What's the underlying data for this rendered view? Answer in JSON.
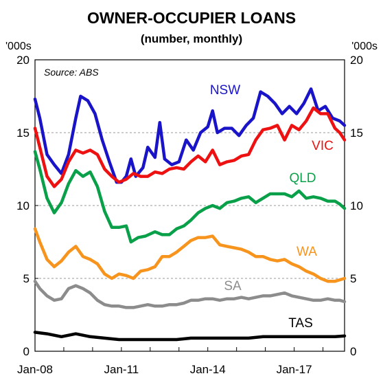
{
  "chart_data": {
    "type": "line",
    "title": "OWNER-OCCUPIER LOANS",
    "subtitle": "(number, monthly)",
    "y_unit_left": "'000s",
    "y_unit_right": "'000s",
    "annotation": "Source: ABS",
    "ylim": [
      0,
      20
    ],
    "yticks": [
      "0",
      "5",
      "10",
      "15",
      "20"
    ],
    "x_domain": [
      "2008-01",
      "2018-10"
    ],
    "xticks": [
      {
        "date": "2008-01",
        "label": "Jan-08"
      },
      {
        "date": "2011-01",
        "label": "Jan-11"
      },
      {
        "date": "2014-01",
        "label": "Jan-14"
      },
      {
        "date": "2017-01",
        "label": "Jan-17"
      }
    ],
    "grid": "horizontal dashed",
    "series": [
      {
        "name": "NSW",
        "color": "#1a14c8",
        "points": [
          [
            "2008-01",
            17.3
          ],
          [
            "2008-03",
            16.0
          ],
          [
            "2008-06",
            13.5
          ],
          [
            "2008-09",
            12.8
          ],
          [
            "2008-12",
            12.2
          ],
          [
            "2009-03",
            13.5
          ],
          [
            "2009-06",
            16.0
          ],
          [
            "2009-08",
            17.5
          ],
          [
            "2009-11",
            17.2
          ],
          [
            "2010-02",
            16.3
          ],
          [
            "2010-05",
            14.5
          ],
          [
            "2010-08",
            13.0
          ],
          [
            "2010-11",
            11.6
          ],
          [
            "2011-01",
            11.6
          ],
          [
            "2011-03",
            12.0
          ],
          [
            "2011-05",
            13.2
          ],
          [
            "2011-07",
            12.0
          ],
          [
            "2011-10",
            12.6
          ],
          [
            "2011-12",
            14.0
          ],
          [
            "2012-03",
            13.3
          ],
          [
            "2012-05",
            15.7
          ],
          [
            "2012-07",
            13.2
          ],
          [
            "2012-10",
            12.8
          ],
          [
            "2013-01",
            13.0
          ],
          [
            "2013-04",
            14.5
          ],
          [
            "2013-07",
            13.8
          ],
          [
            "2013-10",
            15.0
          ],
          [
            "2014-01",
            15.4
          ],
          [
            "2014-03",
            16.5
          ],
          [
            "2014-05",
            15.0
          ],
          [
            "2014-08",
            15.3
          ],
          [
            "2014-11",
            15.3
          ],
          [
            "2015-02",
            14.8
          ],
          [
            "2015-05",
            15.5
          ],
          [
            "2015-08",
            16.0
          ],
          [
            "2015-11",
            17.8
          ],
          [
            "2016-02",
            17.5
          ],
          [
            "2016-05",
            17.0
          ],
          [
            "2016-08",
            16.3
          ],
          [
            "2016-11",
            16.8
          ],
          [
            "2017-02",
            16.3
          ],
          [
            "2017-05",
            17.0
          ],
          [
            "2017-08",
            18.0
          ],
          [
            "2017-11",
            16.5
          ],
          [
            "2018-02",
            16.8
          ],
          [
            "2018-05",
            16.0
          ],
          [
            "2018-08",
            15.8
          ],
          [
            "2018-10",
            15.5
          ]
        ]
      },
      {
        "name": "VIC",
        "color": "#ee1111",
        "points": [
          [
            "2008-01",
            15.3
          ],
          [
            "2008-03",
            14.0
          ],
          [
            "2008-06",
            12.0
          ],
          [
            "2008-09",
            11.3
          ],
          [
            "2008-12",
            11.8
          ],
          [
            "2009-03",
            13.0
          ],
          [
            "2009-06",
            13.8
          ],
          [
            "2009-09",
            13.6
          ],
          [
            "2009-12",
            13.8
          ],
          [
            "2010-03",
            13.5
          ],
          [
            "2010-06",
            12.5
          ],
          [
            "2010-09",
            12.0
          ],
          [
            "2010-12",
            11.6
          ],
          [
            "2011-03",
            11.8
          ],
          [
            "2011-06",
            12.2
          ],
          [
            "2011-09",
            12.0
          ],
          [
            "2011-12",
            12.0
          ],
          [
            "2012-03",
            12.3
          ],
          [
            "2012-06",
            12.2
          ],
          [
            "2012-09",
            12.5
          ],
          [
            "2012-12",
            12.6
          ],
          [
            "2013-03",
            12.5
          ],
          [
            "2013-06",
            13.0
          ],
          [
            "2013-09",
            13.4
          ],
          [
            "2013-12",
            13.0
          ],
          [
            "2014-03",
            13.8
          ],
          [
            "2014-06",
            12.8
          ],
          [
            "2014-09",
            13.0
          ],
          [
            "2014-12",
            13.1
          ],
          [
            "2015-03",
            13.4
          ],
          [
            "2015-06",
            13.5
          ],
          [
            "2015-09",
            14.5
          ],
          [
            "2015-12",
            15.2
          ],
          [
            "2016-03",
            15.3
          ],
          [
            "2016-06",
            15.5
          ],
          [
            "2016-09",
            14.5
          ],
          [
            "2016-12",
            15.5
          ],
          [
            "2017-03",
            15.2
          ],
          [
            "2017-06",
            15.8
          ],
          [
            "2017-09",
            16.7
          ],
          [
            "2017-12",
            16.3
          ],
          [
            "2018-03",
            16.3
          ],
          [
            "2018-06",
            15.3
          ],
          [
            "2018-08",
            15.0
          ],
          [
            "2018-10",
            14.5
          ]
        ]
      },
      {
        "name": "QLD",
        "color": "#0aa04a",
        "points": [
          [
            "2008-01",
            13.7
          ],
          [
            "2008-03",
            12.5
          ],
          [
            "2008-06",
            10.5
          ],
          [
            "2008-09",
            9.5
          ],
          [
            "2008-12",
            10.2
          ],
          [
            "2009-03",
            11.5
          ],
          [
            "2009-06",
            12.4
          ],
          [
            "2009-09",
            12.0
          ],
          [
            "2009-12",
            12.3
          ],
          [
            "2010-03",
            11.3
          ],
          [
            "2010-06",
            9.6
          ],
          [
            "2010-09",
            8.5
          ],
          [
            "2010-12",
            8.5
          ],
          [
            "2011-03",
            8.6
          ],
          [
            "2011-05",
            7.5
          ],
          [
            "2011-08",
            7.8
          ],
          [
            "2011-11",
            7.9
          ],
          [
            "2012-03",
            8.2
          ],
          [
            "2012-06",
            8.0
          ],
          [
            "2012-09",
            8.0
          ],
          [
            "2012-12",
            8.4
          ],
          [
            "2013-03",
            8.6
          ],
          [
            "2013-06",
            9.0
          ],
          [
            "2013-09",
            9.5
          ],
          [
            "2013-12",
            9.8
          ],
          [
            "2014-03",
            10.0
          ],
          [
            "2014-06",
            9.8
          ],
          [
            "2014-09",
            10.2
          ],
          [
            "2014-12",
            10.3
          ],
          [
            "2015-03",
            10.5
          ],
          [
            "2015-06",
            10.6
          ],
          [
            "2015-09",
            10.2
          ],
          [
            "2015-12",
            10.5
          ],
          [
            "2016-03",
            10.8
          ],
          [
            "2016-06",
            10.8
          ],
          [
            "2016-09",
            10.8
          ],
          [
            "2016-12",
            10.6
          ],
          [
            "2017-03",
            11.0
          ],
          [
            "2017-06",
            10.5
          ],
          [
            "2017-09",
            10.6
          ],
          [
            "2017-12",
            10.5
          ],
          [
            "2018-03",
            10.3
          ],
          [
            "2018-06",
            10.3
          ],
          [
            "2018-08",
            10.1
          ],
          [
            "2018-10",
            9.8
          ]
        ]
      },
      {
        "name": "WA",
        "color": "#f7941d",
        "points": [
          [
            "2008-01",
            8.4
          ],
          [
            "2008-03",
            7.5
          ],
          [
            "2008-06",
            6.3
          ],
          [
            "2008-09",
            5.8
          ],
          [
            "2008-12",
            6.2
          ],
          [
            "2009-03",
            6.8
          ],
          [
            "2009-06",
            7.2
          ],
          [
            "2009-09",
            6.5
          ],
          [
            "2009-12",
            6.3
          ],
          [
            "2010-03",
            6.0
          ],
          [
            "2010-06",
            5.3
          ],
          [
            "2010-09",
            5.0
          ],
          [
            "2010-12",
            5.3
          ],
          [
            "2011-03",
            5.2
          ],
          [
            "2011-06",
            5.0
          ],
          [
            "2011-09",
            5.5
          ],
          [
            "2011-12",
            5.6
          ],
          [
            "2012-03",
            5.8
          ],
          [
            "2012-06",
            6.5
          ],
          [
            "2012-09",
            6.5
          ],
          [
            "2012-12",
            6.8
          ],
          [
            "2013-03",
            7.2
          ],
          [
            "2013-06",
            7.6
          ],
          [
            "2013-09",
            7.8
          ],
          [
            "2013-12",
            7.8
          ],
          [
            "2014-03",
            7.9
          ],
          [
            "2014-06",
            7.3
          ],
          [
            "2014-09",
            7.2
          ],
          [
            "2014-12",
            7.1
          ],
          [
            "2015-03",
            7.0
          ],
          [
            "2015-06",
            6.8
          ],
          [
            "2015-09",
            6.5
          ],
          [
            "2015-12",
            6.5
          ],
          [
            "2016-03",
            6.3
          ],
          [
            "2016-06",
            6.2
          ],
          [
            "2016-09",
            6.3
          ],
          [
            "2016-12",
            6.0
          ],
          [
            "2017-03",
            5.8
          ],
          [
            "2017-06",
            5.5
          ],
          [
            "2017-09",
            5.3
          ],
          [
            "2017-12",
            5.0
          ],
          [
            "2018-03",
            4.8
          ],
          [
            "2018-06",
            4.8
          ],
          [
            "2018-08",
            4.9
          ],
          [
            "2018-10",
            5.0
          ]
        ]
      },
      {
        "name": "SA",
        "color": "#8c8c8c",
        "points": [
          [
            "2008-01",
            4.8
          ],
          [
            "2008-03",
            4.3
          ],
          [
            "2008-06",
            3.8
          ],
          [
            "2008-09",
            3.5
          ],
          [
            "2008-12",
            3.6
          ],
          [
            "2009-03",
            4.3
          ],
          [
            "2009-06",
            4.5
          ],
          [
            "2009-09",
            4.3
          ],
          [
            "2009-12",
            4.0
          ],
          [
            "2010-03",
            3.5
          ],
          [
            "2010-06",
            3.2
          ],
          [
            "2010-09",
            3.1
          ],
          [
            "2010-12",
            3.1
          ],
          [
            "2011-03",
            3.0
          ],
          [
            "2011-06",
            3.0
          ],
          [
            "2011-09",
            3.1
          ],
          [
            "2011-12",
            3.2
          ],
          [
            "2012-03",
            3.1
          ],
          [
            "2012-06",
            3.1
          ],
          [
            "2012-09",
            3.2
          ],
          [
            "2012-12",
            3.2
          ],
          [
            "2013-03",
            3.3
          ],
          [
            "2013-06",
            3.5
          ],
          [
            "2013-09",
            3.5
          ],
          [
            "2013-12",
            3.6
          ],
          [
            "2014-03",
            3.6
          ],
          [
            "2014-06",
            3.5
          ],
          [
            "2014-09",
            3.6
          ],
          [
            "2014-12",
            3.6
          ],
          [
            "2015-03",
            3.7
          ],
          [
            "2015-06",
            3.6
          ],
          [
            "2015-09",
            3.7
          ],
          [
            "2015-12",
            3.8
          ],
          [
            "2016-03",
            3.8
          ],
          [
            "2016-06",
            3.9
          ],
          [
            "2016-09",
            4.0
          ],
          [
            "2016-12",
            3.8
          ],
          [
            "2017-03",
            3.7
          ],
          [
            "2017-06",
            3.6
          ],
          [
            "2017-09",
            3.5
          ],
          [
            "2017-12",
            3.5
          ],
          [
            "2018-03",
            3.6
          ],
          [
            "2018-06",
            3.5
          ],
          [
            "2018-08",
            3.5
          ],
          [
            "2018-10",
            3.4
          ]
        ]
      },
      {
        "name": "TAS",
        "color": "#000000",
        "points": [
          [
            "2008-01",
            1.3
          ],
          [
            "2008-06",
            1.2
          ],
          [
            "2008-12",
            1.0
          ],
          [
            "2009-06",
            1.2
          ],
          [
            "2009-12",
            1.0
          ],
          [
            "2010-06",
            0.9
          ],
          [
            "2010-12",
            0.8
          ],
          [
            "2011-06",
            0.8
          ],
          [
            "2011-12",
            0.8
          ],
          [
            "2012-06",
            0.8
          ],
          [
            "2012-12",
            0.8
          ],
          [
            "2013-06",
            0.9
          ],
          [
            "2013-12",
            0.9
          ],
          [
            "2014-06",
            0.9
          ],
          [
            "2014-12",
            0.9
          ],
          [
            "2015-06",
            0.9
          ],
          [
            "2015-12",
            1.0
          ],
          [
            "2016-06",
            1.0
          ],
          [
            "2016-12",
            1.0
          ],
          [
            "2017-06",
            1.0
          ],
          [
            "2017-12",
            1.0
          ],
          [
            "2018-06",
            1.0
          ],
          [
            "2018-10",
            1.05
          ]
        ]
      }
    ]
  }
}
